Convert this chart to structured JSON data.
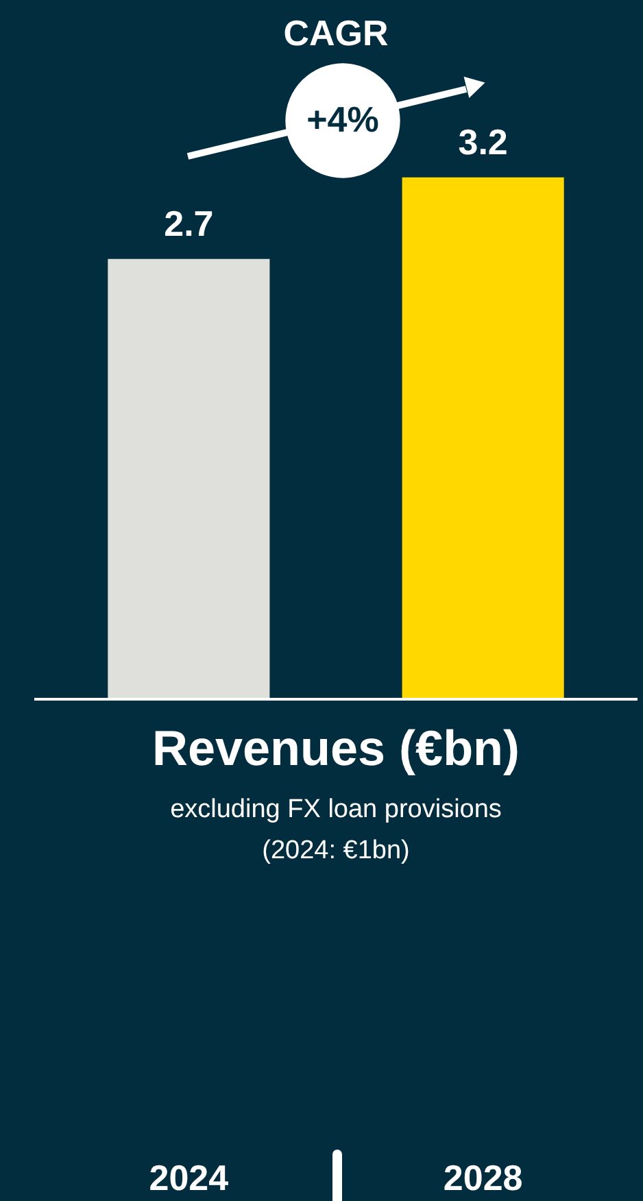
{
  "chart_data": {
    "type": "bar",
    "title": "Revenues (€bn)",
    "subtitle": "excluding FX loan provisions",
    "categories": [
      "2024",
      "2028"
    ],
    "values": [
      2.7,
      3.2
    ],
    "colors": [
      "#dfdfdb",
      "#ffd800"
    ],
    "data_labels": true,
    "annotations": [
      "CAGR",
      "+4%",
      "(2024: €1bn)"
    ]
  }
}
